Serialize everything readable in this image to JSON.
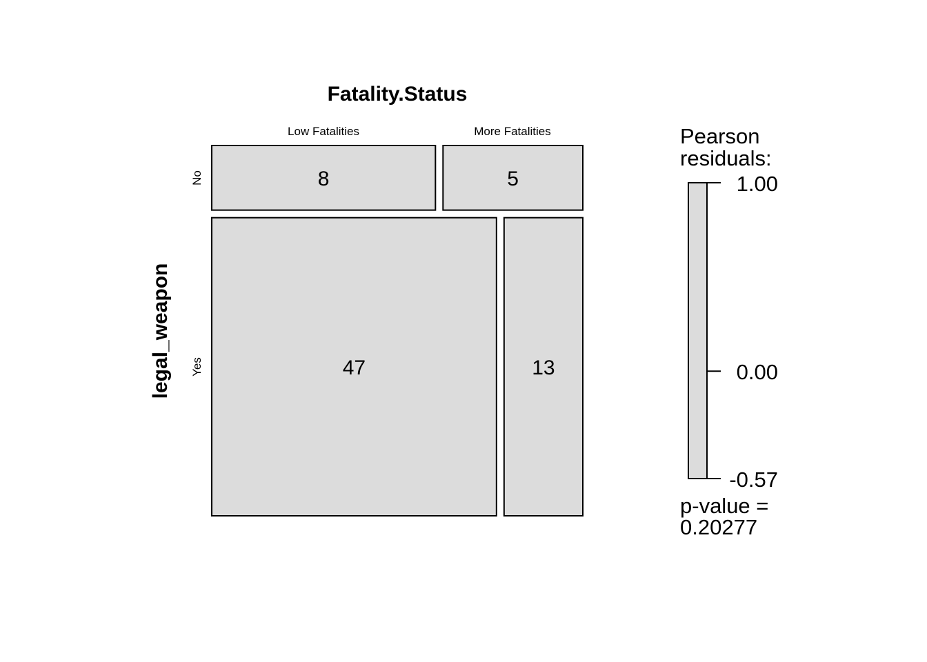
{
  "chart_data": {
    "type": "mosaic",
    "title": "Fatality.Status",
    "xlabel": "Fatality.Status",
    "ylabel": "legal_weapon",
    "x_levels": [
      "Low Fatalities",
      "More Fatalities"
    ],
    "y_levels": [
      "No",
      "Yes"
    ],
    "counts": [
      [
        8,
        5
      ],
      [
        47,
        13
      ]
    ],
    "cell_fill": "#dcdcdc",
    "legend": {
      "title_line1": "Pearson",
      "title_line2": "residuals:",
      "ticks": [
        "1.00",
        "0.00",
        "-0.57"
      ],
      "max": 1.0,
      "min": -0.57,
      "pvalue_line1": "p-value =",
      "pvalue_line2": "0.20277"
    }
  }
}
